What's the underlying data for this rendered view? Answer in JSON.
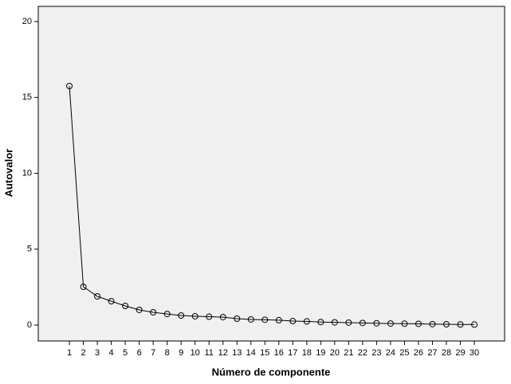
{
  "chart_data": {
    "type": "line",
    "x_label": "Número de componente",
    "y_label": "Autovalor",
    "x": [
      1,
      2,
      3,
      4,
      5,
      6,
      7,
      8,
      9,
      10,
      11,
      12,
      13,
      14,
      15,
      16,
      17,
      18,
      19,
      20,
      21,
      22,
      23,
      24,
      25,
      26,
      27,
      28,
      29,
      30
    ],
    "series": [
      {
        "color": "#000000",
        "values": [
          15.75,
          2.52,
          1.89,
          1.57,
          1.26,
          1.0,
          0.84,
          0.73,
          0.63,
          0.58,
          0.55,
          0.52,
          0.42,
          0.37,
          0.35,
          0.32,
          0.26,
          0.24,
          0.2,
          0.18,
          0.16,
          0.14,
          0.12,
          0.1,
          0.09,
          0.08,
          0.06,
          0.05,
          0.04,
          0.03
        ]
      }
    ],
    "xlim": [
      -1.23,
      32.17
    ],
    "xticks": [
      1,
      2,
      3,
      4,
      5,
      6,
      7,
      8,
      9,
      10,
      11,
      12,
      13,
      14,
      15,
      16,
      17,
      18,
      19,
      20,
      21,
      22,
      23,
      24,
      25,
      26,
      27,
      28,
      29,
      30
    ],
    "ylim": [
      -1.05,
      21.0
    ],
    "yticks": [
      0,
      5,
      10,
      15,
      20
    ],
    "markers": true
  }
}
